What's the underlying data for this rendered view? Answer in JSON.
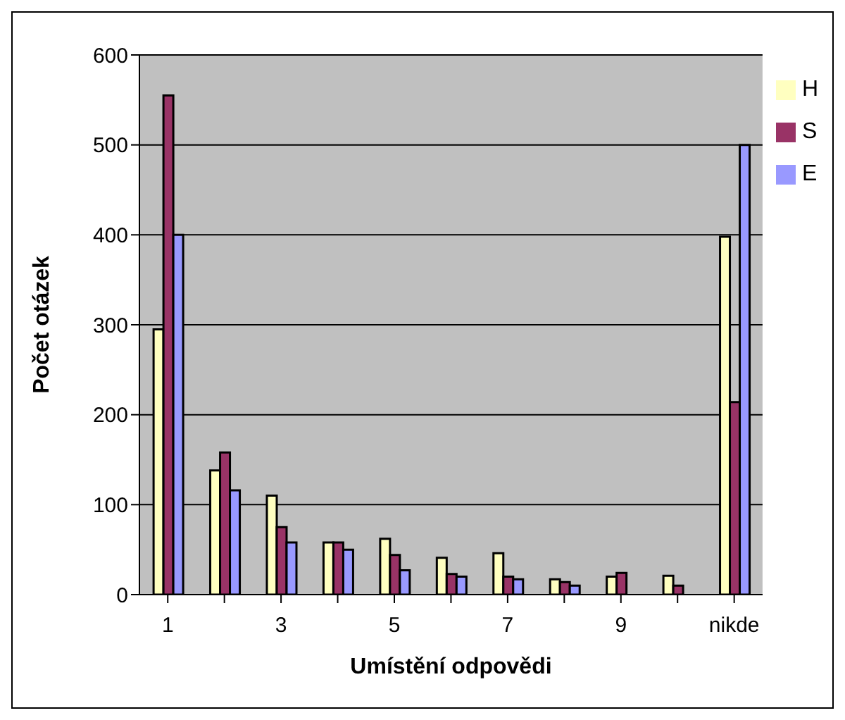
{
  "chart_data": {
    "type": "bar",
    "xlabel": "Umístění odpovědi",
    "ylabel": "Počet otázek",
    "categories": [
      "1",
      null,
      "3",
      null,
      "5",
      null,
      "7",
      null,
      "9",
      null,
      "nikde"
    ],
    "series": [
      {
        "name": "H",
        "color": "#ffffc0",
        "values": [
          295,
          138,
          110,
          58,
          62,
          41,
          46,
          17,
          20,
          21,
          398
        ]
      },
      {
        "name": "S",
        "color": "#993366",
        "values": [
          555,
          158,
          75,
          58,
          44,
          23,
          20,
          14,
          24,
          10,
          214
        ]
      },
      {
        "name": "E",
        "color": "#9999ff",
        "values": [
          400,
          116,
          58,
          50,
          27,
          20,
          17,
          10,
          0,
          0,
          500
        ]
      }
    ],
    "ylim": [
      0,
      600
    ],
    "yticks": [
      0,
      100,
      200,
      300,
      400,
      500,
      600
    ],
    "grid": "y",
    "legend": "right"
  }
}
